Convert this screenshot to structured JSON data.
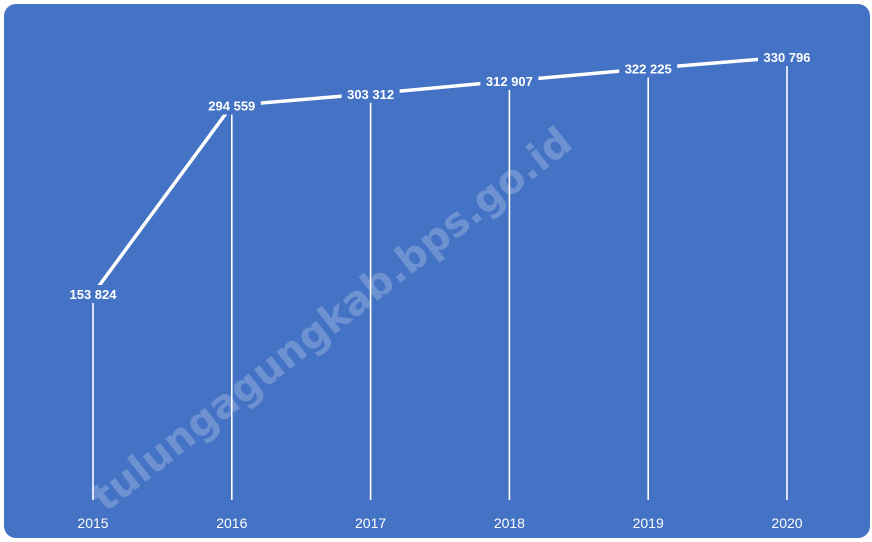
{
  "chart_data": {
    "type": "line",
    "categories": [
      "2015",
      "2016",
      "2017",
      "2018",
      "2019",
      "2020"
    ],
    "values": [
      153824,
      294559,
      303312,
      312907,
      322225,
      330796
    ],
    "value_labels": [
      "153 824",
      "294 559",
      "303 312",
      "312 907",
      "322 225",
      "330 796"
    ],
    "title": "",
    "xlabel": "",
    "ylabel": "",
    "ylim": [
      0,
      350000
    ],
    "grid": false,
    "drop_lines": true,
    "legend": "none"
  },
  "watermark": "tulungagungkab.bps.go.id",
  "colors": {
    "background": "#4472c4",
    "line": "#ffffff",
    "text": "#ffffff"
  }
}
